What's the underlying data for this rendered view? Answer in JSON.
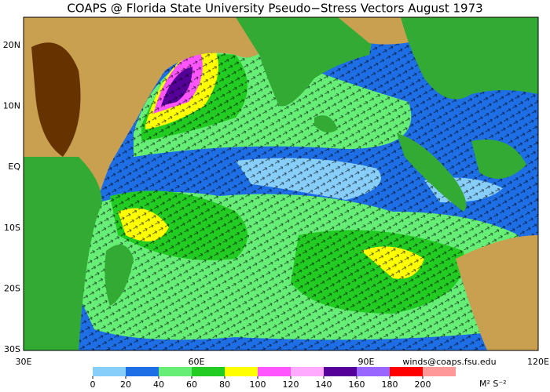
{
  "title": "COAPS @ Florida State University Pseudo−Stress Vectors  August 1973",
  "lat_labels": [
    "20N",
    "10N",
    "EQ",
    "10S",
    "20S",
    "30S"
  ],
  "lon_labels": [
    "30E",
    "60E",
    "90E",
    "120E"
  ],
  "credit": "winds@coaps.fsu.edu",
  "colorbar": {
    "bins": [
      0,
      20,
      40,
      60,
      80,
      100,
      120,
      140,
      160,
      180,
      200
    ],
    "colors": [
      "#87cefa",
      "#1e6ee6",
      "#66ee77",
      "#22cc22",
      "#ffff00",
      "#ff55ff",
      "#ffaaff",
      "#550099",
      "#9966ff",
      "#ff0000",
      "#ff9999"
    ],
    "unit": "M² S⁻²"
  }
}
